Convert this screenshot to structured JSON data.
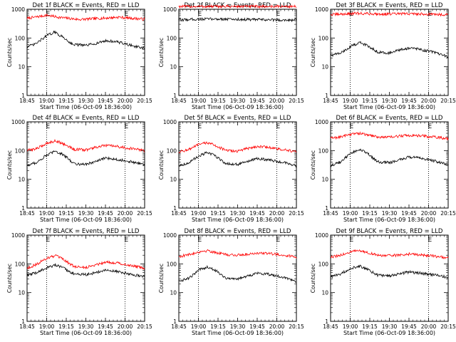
{
  "figure": {
    "start_time_label": "Start Time (06-Oct-09 18:36:00)"
  },
  "chart_data": [
    {
      "type": "line",
      "title": "Det 1f BLACK = Events, RED = LLD",
      "xlabel": "Start Time (06-Oct-09 18:36:00)",
      "ylabel": "Counts/sec",
      "y_scale": "log",
      "ylim": [
        1,
        1000
      ],
      "x_ticks": [
        "18:45",
        "19:00",
        "19:15",
        "19:30",
        "19:45",
        "20:00",
        "20:15"
      ],
      "y_ticks": [
        "1",
        "10",
        "100",
        "1000"
      ],
      "x_range_min": [
        9,
        99
      ],
      "markers_min": [
        24,
        84
      ],
      "marker_labels": [
        "E",
        "E"
      ],
      "series": [
        {
          "color": "#ff0000",
          "points": [
            [
              9,
              480
            ],
            [
              24,
              620
            ],
            [
              34,
              520
            ],
            [
              49,
              440
            ],
            [
              64,
              480
            ],
            [
              79,
              530
            ],
            [
              99,
              450
            ]
          ]
        },
        {
          "color": "#000000",
          "points": [
            [
              9,
              50
            ],
            [
              15,
              60
            ],
            [
              24,
              120
            ],
            [
              30,
              160
            ],
            [
              36,
              110
            ],
            [
              44,
              60
            ],
            [
              54,
              55
            ],
            [
              62,
              65
            ],
            [
              69,
              80
            ],
            [
              77,
              75
            ],
            [
              87,
              58
            ],
            [
              99,
              42
            ]
          ]
        }
      ]
    },
    {
      "type": "line",
      "title": "Det 2f BLACK = Events, RED = LLD",
      "xlabel": "Start Time (06-Oct-09 18:36:00)",
      "ylabel": "Counts/sec",
      "y_scale": "log",
      "ylim": [
        1,
        1000
      ],
      "x_ticks": [
        "18:45",
        "19:00",
        "19:15",
        "19:30",
        "19:45",
        "20:00",
        "20:15"
      ],
      "y_ticks": [
        "1",
        "10",
        "100",
        "1000"
      ],
      "x_range_min": [
        9,
        99
      ],
      "markers_min": [
        24,
        84
      ],
      "marker_labels": [
        "E",
        "E"
      ],
      "series": [
        {
          "color": "#ff0000",
          "points": [
            [
              9,
              1250
            ],
            [
              99,
              1250
            ]
          ]
        },
        {
          "color": "#000000",
          "points": [
            [
              9,
              420
            ],
            [
              20,
              450
            ],
            [
              40,
              460
            ],
            [
              60,
              440
            ],
            [
              80,
              430
            ],
            [
              99,
              420
            ]
          ]
        }
      ]
    },
    {
      "type": "line",
      "title": "Det 3f BLACK = Events, RED = LLD",
      "xlabel": "Start Time (06-Oct-09 18:36:00)",
      "ylabel": "Counts/sec",
      "y_scale": "log",
      "ylim": [
        1,
        1000
      ],
      "x_ticks": [
        "18:45",
        "19:00",
        "19:15",
        "19:30",
        "19:45",
        "20:00",
        "20:15"
      ],
      "y_ticks": [
        "1",
        "10",
        "100",
        "1000"
      ],
      "x_range_min": [
        9,
        99
      ],
      "markers_min": [
        24,
        84
      ],
      "marker_labels": [
        "E",
        "E"
      ],
      "series": [
        {
          "color": "#ff0000",
          "points": [
            [
              9,
              650
            ],
            [
              29,
              720
            ],
            [
              49,
              680
            ],
            [
              69,
              700
            ],
            [
              99,
              650
            ]
          ]
        },
        {
          "color": "#000000",
          "points": [
            [
              9,
              25
            ],
            [
              17,
              30
            ],
            [
              24,
              50
            ],
            [
              31,
              70
            ],
            [
              37,
              55
            ],
            [
              45,
              33
            ],
            [
              54,
              30
            ],
            [
              62,
              38
            ],
            [
              69,
              45
            ],
            [
              77,
              40
            ],
            [
              87,
              33
            ],
            [
              99,
              22
            ]
          ]
        }
      ]
    },
    {
      "type": "line",
      "title": "Det 4f BLACK = Events, RED = LLD",
      "xlabel": "Start Time (06-Oct-09 18:36:00)",
      "ylabel": "Counts/sec",
      "y_scale": "log",
      "ylim": [
        1,
        1000
      ],
      "x_ticks": [
        "18:45",
        "19:00",
        "19:15",
        "19:30",
        "19:45",
        "20:00",
        "20:15"
      ],
      "y_ticks": [
        "1",
        "10",
        "100",
        "1000"
      ],
      "x_range_min": [
        9,
        99
      ],
      "markers_min": [
        24,
        84
      ],
      "marker_labels": [
        "E",
        "E"
      ],
      "series": [
        {
          "color": "#ff0000",
          "points": [
            [
              9,
              100
            ],
            [
              17,
              120
            ],
            [
              24,
              180
            ],
            [
              31,
              220
            ],
            [
              37,
              170
            ],
            [
              45,
              110
            ],
            [
              54,
              105
            ],
            [
              62,
              130
            ],
            [
              69,
              150
            ],
            [
              77,
              140
            ],
            [
              87,
              120
            ],
            [
              99,
              100
            ]
          ]
        },
        {
          "color": "#000000",
          "points": [
            [
              9,
              30
            ],
            [
              17,
              40
            ],
            [
              24,
              70
            ],
            [
              31,
              95
            ],
            [
              37,
              70
            ],
            [
              45,
              35
            ],
            [
              54,
              33
            ],
            [
              62,
              42
            ],
            [
              69,
              55
            ],
            [
              77,
              50
            ],
            [
              87,
              42
            ],
            [
              99,
              32
            ]
          ]
        }
      ]
    },
    {
      "type": "line",
      "title": "Det 5f BLACK = Events, RED = LLD",
      "xlabel": "Start Time (06-Oct-09 18:36:00)",
      "ylabel": "Counts/sec",
      "y_scale": "log",
      "ylim": [
        1,
        1000
      ],
      "x_ticks": [
        "18:45",
        "19:00",
        "19:15",
        "19:30",
        "19:45",
        "20:00",
        "20:15"
      ],
      "y_ticks": [
        "1",
        "10",
        "100",
        "1000"
      ],
      "x_range_min": [
        9,
        99
      ],
      "markers_min": [
        24,
        84
      ],
      "marker_labels": [
        "E",
        "E"
      ],
      "series": [
        {
          "color": "#ff0000",
          "points": [
            [
              9,
              90
            ],
            [
              17,
              110
            ],
            [
              24,
              160
            ],
            [
              31,
              190
            ],
            [
              37,
              150
            ],
            [
              45,
              100
            ],
            [
              54,
              95
            ],
            [
              62,
              120
            ],
            [
              69,
              140
            ],
            [
              77,
              130
            ],
            [
              87,
              110
            ],
            [
              99,
              90
            ]
          ]
        },
        {
          "color": "#000000",
          "points": [
            [
              9,
              30
            ],
            [
              17,
              38
            ],
            [
              24,
              65
            ],
            [
              31,
              85
            ],
            [
              37,
              65
            ],
            [
              45,
              35
            ],
            [
              54,
              33
            ],
            [
              62,
              42
            ],
            [
              69,
              52
            ],
            [
              77,
              48
            ],
            [
              87,
              40
            ],
            [
              99,
              30
            ]
          ]
        }
      ]
    },
    {
      "type": "line",
      "title": "Det 6f BLACK = Events, RED = LLD",
      "xlabel": "Start Time (06-Oct-09 18:36:00)",
      "ylabel": "Counts/sec",
      "y_scale": "log",
      "ylim": [
        1,
        1000
      ],
      "x_ticks": [
        "18:45",
        "19:00",
        "19:15",
        "19:30",
        "19:45",
        "20:00",
        "20:15"
      ],
      "y_ticks": [
        "1",
        "10",
        "100",
        "1000"
      ],
      "x_range_min": [
        9,
        99
      ],
      "markers_min": [
        24,
        84
      ],
      "marker_labels": [
        "E",
        "E"
      ],
      "series": [
        {
          "color": "#ff0000",
          "points": [
            [
              9,
              270
            ],
            [
              17,
              300
            ],
            [
              24,
              370
            ],
            [
              31,
              400
            ],
            [
              37,
              350
            ],
            [
              45,
              300
            ],
            [
              54,
              290
            ],
            [
              62,
              320
            ],
            [
              69,
              340
            ],
            [
              77,
              330
            ],
            [
              87,
              300
            ],
            [
              99,
              260
            ]
          ]
        },
        {
          "color": "#000000",
          "points": [
            [
              9,
              30
            ],
            [
              17,
              40
            ],
            [
              24,
              80
            ],
            [
              31,
              110
            ],
            [
              37,
              80
            ],
            [
              45,
              40
            ],
            [
              54,
              38
            ],
            [
              62,
              48
            ],
            [
              69,
              60
            ],
            [
              77,
              55
            ],
            [
              87,
              45
            ],
            [
              99,
              33
            ]
          ]
        }
      ]
    },
    {
      "type": "line",
      "title": "Det 7f BLACK = Events, RED = LLD",
      "xlabel": "Start Time (06-Oct-09 18:36:00)",
      "ylabel": "Counts/sec",
      "y_scale": "log",
      "ylim": [
        1,
        1000
      ],
      "x_ticks": [
        "18:45",
        "19:00",
        "19:15",
        "19:30",
        "19:45",
        "20:00",
        "20:15"
      ],
      "y_ticks": [
        "1",
        "10",
        "100",
        "1000"
      ],
      "x_range_min": [
        9,
        99
      ],
      "markers_min": [
        24,
        84
      ],
      "marker_labels": [
        "E",
        "E"
      ],
      "series": [
        {
          "color": "#ff0000",
          "points": [
            [
              9,
              70
            ],
            [
              17,
              100
            ],
            [
              24,
              160
            ],
            [
              31,
              190
            ],
            [
              37,
              140
            ],
            [
              45,
              80
            ],
            [
              54,
              75
            ],
            [
              62,
              95
            ],
            [
              69,
              115
            ],
            [
              77,
              110
            ],
            [
              87,
              90
            ],
            [
              99,
              70
            ]
          ]
        },
        {
          "color": "#000000",
          "points": [
            [
              9,
              40
            ],
            [
              17,
              50
            ],
            [
              24,
              75
            ],
            [
              31,
              90
            ],
            [
              37,
              70
            ],
            [
              45,
              45
            ],
            [
              54,
              42
            ],
            [
              62,
              50
            ],
            [
              69,
              60
            ],
            [
              77,
              55
            ],
            [
              87,
              45
            ],
            [
              99,
              35
            ]
          ]
        }
      ]
    },
    {
      "type": "line",
      "title": "Det 8f BLACK = Events, RED = LLD",
      "xlabel": "Start Time (06-Oct-09 18:36:00)",
      "ylabel": "Counts/sec",
      "y_scale": "log",
      "ylim": [
        1,
        1000
      ],
      "x_ticks": [
        "18:45",
        "19:00",
        "19:15",
        "19:30",
        "19:45",
        "20:00",
        "20:15"
      ],
      "y_ticks": [
        "1",
        "10",
        "100",
        "1000"
      ],
      "x_range_min": [
        9,
        99
      ],
      "markers_min": [
        24,
        84
      ],
      "marker_labels": [
        "E",
        "E"
      ],
      "series": [
        {
          "color": "#ff0000",
          "points": [
            [
              9,
              180
            ],
            [
              17,
              210
            ],
            [
              24,
              260
            ],
            [
              31,
              290
            ],
            [
              37,
              250
            ],
            [
              45,
              210
            ],
            [
              54,
              200
            ],
            [
              62,
              220
            ],
            [
              69,
              240
            ],
            [
              77,
              230
            ],
            [
              87,
              210
            ],
            [
              99,
              170
            ]
          ]
        },
        {
          "color": "#000000",
          "points": [
            [
              9,
              25
            ],
            [
              17,
              32
            ],
            [
              24,
              60
            ],
            [
              31,
              80
            ],
            [
              37,
              60
            ],
            [
              45,
              32
            ],
            [
              54,
              30
            ],
            [
              62,
              38
            ],
            [
              69,
              48
            ],
            [
              77,
              44
            ],
            [
              87,
              36
            ],
            [
              99,
              25
            ]
          ]
        }
      ]
    },
    {
      "type": "line",
      "title": "Det 9f BLACK = Events, RED = LLD",
      "xlabel": "Start Time (06-Oct-09 18:36:00)",
      "ylabel": "Counts/sec",
      "y_scale": "log",
      "ylim": [
        1,
        1000
      ],
      "x_ticks": [
        "18:45",
        "19:00",
        "19:15",
        "19:30",
        "19:45",
        "20:00",
        "20:15"
      ],
      "y_ticks": [
        "1",
        "10",
        "100",
        "1000"
      ],
      "x_range_min": [
        9,
        99
      ],
      "markers_min": [
        24,
        84
      ],
      "marker_labels": [
        "E",
        "E"
      ],
      "series": [
        {
          "color": "#ff0000",
          "points": [
            [
              9,
              170
            ],
            [
              17,
              200
            ],
            [
              24,
              260
            ],
            [
              31,
              290
            ],
            [
              37,
              250
            ],
            [
              45,
              200
            ],
            [
              54,
              190
            ],
            [
              62,
              205
            ],
            [
              69,
              220
            ],
            [
              77,
              210
            ],
            [
              87,
              190
            ],
            [
              99,
              160
            ]
          ]
        },
        {
          "color": "#000000",
          "points": [
            [
              9,
              35
            ],
            [
              17,
              45
            ],
            [
              24,
              70
            ],
            [
              31,
              85
            ],
            [
              37,
              65
            ],
            [
              45,
              40
            ],
            [
              54,
              38
            ],
            [
              62,
              45
            ],
            [
              69,
              52
            ],
            [
              77,
              48
            ],
            [
              87,
              42
            ],
            [
              99,
              34
            ]
          ]
        }
      ]
    }
  ]
}
